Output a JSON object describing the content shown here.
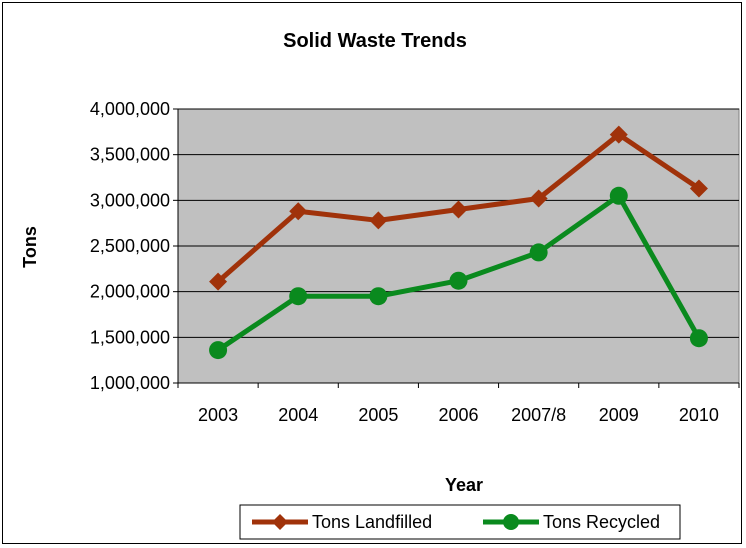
{
  "chart_data": {
    "type": "line",
    "title": "Solid Waste Trends",
    "xlabel": "Year",
    "ylabel": "Tons",
    "categories": [
      "2003",
      "2004",
      "2005",
      "2006",
      "2007/8",
      "2009",
      "2010"
    ],
    "ylim": [
      1000000,
      4000000
    ],
    "yticks": [
      1000000,
      1500000,
      2000000,
      2500000,
      3000000,
      3500000,
      4000000
    ],
    "ytick_labels": [
      "1,000,000",
      "1,500,000",
      "2,000,000",
      "2,500,000",
      "3,000,000",
      "3,500,000",
      "4,000,000"
    ],
    "grid": true,
    "legend_position": "bottom",
    "plot_background": "#c0c0c0",
    "series": [
      {
        "name": "Tons Landfilled",
        "color": "#a0320a",
        "marker": "diamond",
        "values": [
          2110000,
          2880000,
          2780000,
          2900000,
          3020000,
          3720000,
          3130000
        ]
      },
      {
        "name": "Tons Recycled",
        "color": "#0a8a1e",
        "marker": "circle",
        "values": [
          1360000,
          1950000,
          1950000,
          2120000,
          2430000,
          3050000,
          1490000
        ]
      }
    ]
  }
}
